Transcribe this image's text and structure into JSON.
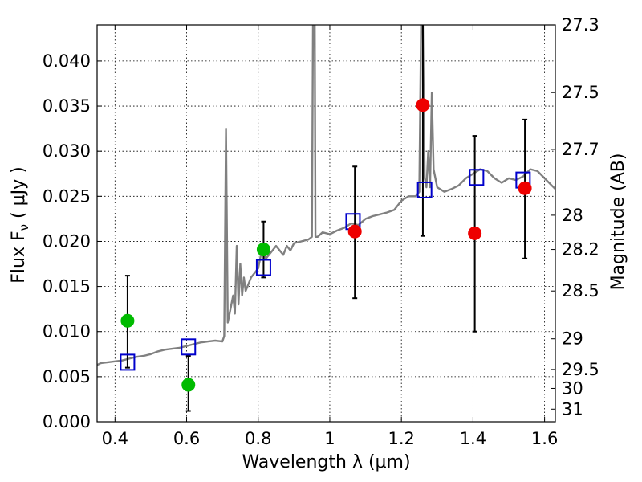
{
  "chart_data": {
    "type": "scatter",
    "xlabel": "Wavelength  λ (μm)",
    "ylabel": "Flux  F",
    "ylabel_sub": "ν",
    "ylabel_units": "  ( μJy )",
    "y2label": "Magnitude (AB)",
    "xlim": [
      0.35,
      1.63
    ],
    "ylim": [
      0.0,
      0.044
    ],
    "grid": true,
    "x_ticks": [
      0.4,
      0.6,
      0.8,
      1.0,
      1.2,
      1.4,
      1.6
    ],
    "x_tick_labels": [
      "0.4",
      "0.6",
      "0.8",
      "1",
      "1.2",
      "1.4",
      "1.6"
    ],
    "y_ticks": [
      0.0,
      0.005,
      0.01,
      0.015,
      0.02,
      0.025,
      0.03,
      0.035,
      0.04
    ],
    "y_tick_labels": [
      "0.000",
      "0.005",
      "0.010",
      "0.015",
      "0.020",
      "0.025",
      "0.030",
      "0.035",
      "0.040"
    ],
    "y2_ticks": [
      {
        "label": "27.3",
        "flux": 0.044
      },
      {
        "label": "27.5",
        "flux": 0.0365
      },
      {
        "label": "27.7",
        "flux": 0.0302
      },
      {
        "label": "28",
        "flux": 0.0229
      },
      {
        "label": "28.2",
        "flux": 0.0191
      },
      {
        "label": "28.5",
        "flux": 0.0145
      },
      {
        "label": "29",
        "flux": 0.0092
      },
      {
        "label": "29.5",
        "flux": 0.0058
      },
      {
        "label": "30",
        "flux": 0.0037
      },
      {
        "label": "31",
        "flux": 0.0014
      }
    ],
    "series": [
      {
        "kind": "line",
        "color": "#808080",
        "x": [
          0.35,
          0.36,
          0.38,
          0.4,
          0.42,
          0.44,
          0.46,
          0.48,
          0.5,
          0.52,
          0.54,
          0.56,
          0.58,
          0.6,
          0.62,
          0.64,
          0.66,
          0.68,
          0.7,
          0.705,
          0.71,
          0.715,
          0.72,
          0.725,
          0.73,
          0.735,
          0.74,
          0.745,
          0.75,
          0.755,
          0.76,
          0.765,
          0.77,
          0.78,
          0.79,
          0.8,
          0.81,
          0.815,
          0.82,
          0.83,
          0.84,
          0.85,
          0.86,
          0.87,
          0.88,
          0.89,
          0.9,
          0.92,
          0.94,
          0.95,
          0.953,
          0.955,
          0.958,
          0.96,
          0.963,
          0.966,
          0.98,
          1.0,
          1.02,
          1.04,
          1.06,
          1.08,
          1.1,
          1.12,
          1.14,
          1.16,
          1.18,
          1.2,
          1.22,
          1.24,
          1.25,
          1.255,
          1.26,
          1.265,
          1.27,
          1.275,
          1.28,
          1.285,
          1.29,
          1.3,
          1.32,
          1.34,
          1.36,
          1.38,
          1.4,
          1.42,
          1.44,
          1.46,
          1.48,
          1.5,
          1.52,
          1.54,
          1.56,
          1.58,
          1.6,
          1.63
        ],
        "y": [
          0.0063,
          0.0065,
          0.0066,
          0.0067,
          0.0068,
          0.007,
          0.0072,
          0.0073,
          0.0075,
          0.0078,
          0.008,
          0.0081,
          0.0082,
          0.0084,
          0.0086,
          0.0088,
          0.0089,
          0.009,
          0.0089,
          0.0095,
          0.0325,
          0.011,
          0.012,
          0.013,
          0.014,
          0.012,
          0.0195,
          0.013,
          0.0175,
          0.014,
          0.016,
          0.0145,
          0.015,
          0.016,
          0.0165,
          0.017,
          0.019,
          0.0195,
          0.018,
          0.0185,
          0.019,
          0.0195,
          0.019,
          0.0185,
          0.0195,
          0.019,
          0.0198,
          0.02,
          0.0202,
          0.0205,
          0.044,
          0.044,
          0.044,
          0.0205,
          0.0205,
          0.0205,
          0.021,
          0.0208,
          0.0212,
          0.0215,
          0.022,
          0.0218,
          0.0225,
          0.0228,
          0.023,
          0.0232,
          0.0235,
          0.0245,
          0.025,
          0.025,
          0.0255,
          0.044,
          0.044,
          0.027,
          0.026,
          0.03,
          0.026,
          0.0365,
          0.028,
          0.026,
          0.0255,
          0.0258,
          0.0262,
          0.027,
          0.0275,
          0.028,
          0.0278,
          0.027,
          0.0265,
          0.027,
          0.0268,
          0.0272,
          0.028,
          0.0278,
          0.027,
          0.0258
        ]
      },
      {
        "kind": "markers",
        "marker": "square",
        "color": "#0000cc",
        "x": [
          0.435,
          0.605,
          0.815,
          1.065,
          1.265,
          1.41,
          1.54
        ],
        "y": [
          0.0066,
          0.0083,
          0.0171,
          0.0222,
          0.0257,
          0.0271,
          0.0268
        ]
      },
      {
        "kind": "markers",
        "marker": "circle",
        "color": "#00bb00",
        "x": [
          0.435,
          0.605,
          0.815
        ],
        "y": [
          0.0112,
          0.0041,
          0.0191
        ],
        "err_low": [
          0.006,
          0.0012,
          0.016
        ],
        "err_high": [
          0.0162,
          0.0073,
          0.0222
        ]
      },
      {
        "kind": "markers",
        "marker": "circle",
        "color": "#ee0000",
        "x": [
          1.07,
          1.26,
          1.405,
          1.545
        ],
        "y": [
          0.0211,
          0.0351,
          0.0209,
          0.0259
        ],
        "err_low": [
          0.0137,
          0.0206,
          0.01,
          0.0181
        ],
        "err_high": [
          0.0283,
          0.044,
          0.0317,
          0.0335
        ]
      }
    ]
  }
}
